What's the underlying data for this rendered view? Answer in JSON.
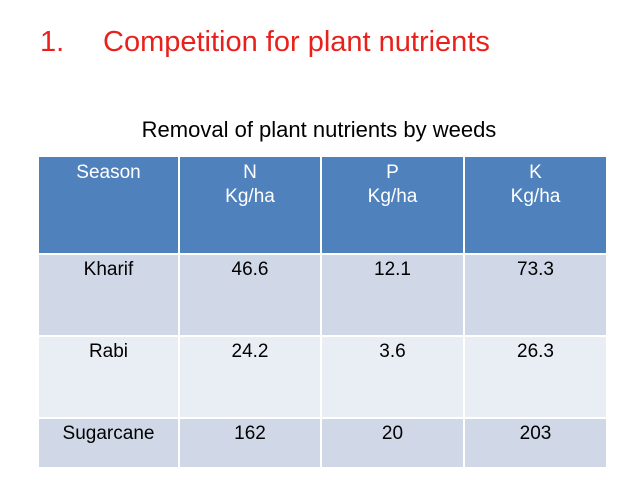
{
  "title": {
    "number": "1.",
    "text": "Competition for plant nutrients"
  },
  "subtitle": "Removal of plant nutrients by weeds",
  "table": {
    "header": [
      "Season",
      "N\nKg/ha",
      "P\nKg/ha",
      "K\nKg/ha"
    ],
    "rows": [
      [
        "Kharif",
        46.6,
        12.1,
        73.3
      ],
      [
        "Rabi",
        24.2,
        3.6,
        26.3
      ],
      [
        "Sugarcane",
        162,
        20,
        203
      ]
    ]
  }
}
